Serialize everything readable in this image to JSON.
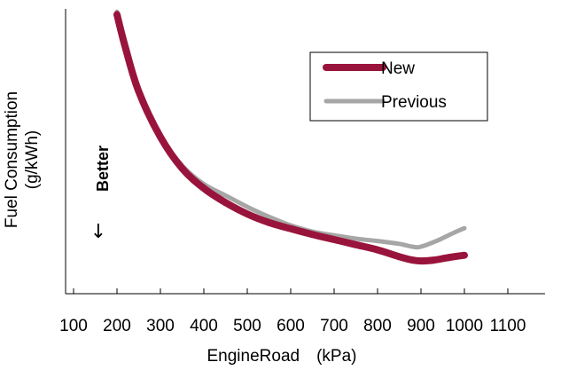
{
  "chart_data": {
    "type": "line",
    "xlabel": "EngineRoad　(kPa)",
    "ylabel_line1": "Fuel Consumption",
    "ylabel_line2": "(g/kWh)",
    "annotation_label": "Better",
    "annotation_arrow": "↓",
    "xlim": [
      100,
      1100
    ],
    "xticks": [
      100,
      200,
      300,
      400,
      500,
      600,
      700,
      800,
      900,
      1000,
      1100
    ],
    "ylim": [
      0,
      100
    ],
    "yticks": [],
    "grid": false,
    "legend_position": "top-right",
    "series": [
      {
        "name": "New",
        "color": "#99143c",
        "x": [
          200,
          220,
          250,
          300,
          350,
          400,
          450,
          500,
          550,
          600,
          650,
          700,
          750,
          800,
          850,
          880,
          900,
          930,
          960,
          1000
        ],
        "y": [
          98,
          86,
          71,
          55,
          44,
          37,
          32,
          28,
          25,
          22.8,
          20.8,
          19,
          17.2,
          15.4,
          13,
          11.8,
          11.5,
          11.8,
          12.6,
          13.5
        ]
      },
      {
        "name": "Previous",
        "color": "#a6a6a6",
        "x": [
          200,
          220,
          250,
          300,
          350,
          400,
          450,
          500,
          550,
          600,
          650,
          700,
          750,
          800,
          850,
          880,
          900,
          940,
          970,
          1000
        ],
        "y": [
          99,
          88,
          72,
          55.5,
          45,
          38.5,
          34.5,
          30.5,
          27,
          24,
          21.8,
          20.5,
          19.3,
          18.5,
          17.5,
          16.5,
          16.5,
          18.8,
          21,
          23
        ]
      }
    ]
  }
}
